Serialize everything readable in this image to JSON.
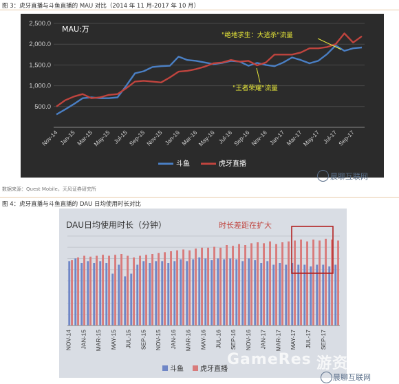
{
  "figure1": {
    "caption": "图 3：虎牙直播与斗鱼直播的 MAU 对比（2014 年 11 月-2017 年 10 月）",
    "source": "数据来源：Quest Mobile，天风证券研究所"
  },
  "figure2": {
    "caption": "图 4：虎牙直播与斗鱼直播的 DAU 日均使用时长对比"
  },
  "watermark": {
    "text1": "晨聊互联网",
    "text2": "晨聊互联网",
    "big": "GameRes",
    "big2": "游资网"
  },
  "chart_data": [
    {
      "type": "line",
      "title": "MAU:万",
      "ylim": [
        0,
        2500
      ],
      "yticks": [
        "500.0",
        "1,000.0",
        "1,500.0",
        "2,000.0",
        "2,500.0"
      ],
      "x_tick_labels": [
        "Nov-14",
        "Jan-15",
        "Mar-15",
        "May-15",
        "Jul-15",
        "Sep-15",
        "Nov-15",
        "Jan-16",
        "Mar-16",
        "May-16",
        "Jul-16",
        "Sep-16",
        "Nov-16",
        "Jan-17",
        "Mar-17",
        "May-17",
        "Jul-17",
        "Sep-17"
      ],
      "annotations": [
        "\"绝地求生：大逃杀\"流量",
        "\"王者荣耀\"流量"
      ],
      "legend": {
        "position": "bottom"
      },
      "series": [
        {
          "name": "斗鱼",
          "color": "#4a7fc4",
          "values": [
            310,
            430,
            560,
            700,
            720,
            700,
            700,
            720,
            1000,
            1300,
            1350,
            1450,
            1470,
            1480,
            1700,
            1620,
            1600,
            1560,
            1520,
            1550,
            1600,
            1580,
            1480,
            1550,
            1500,
            1470,
            1560,
            1680,
            1620,
            1540,
            1600,
            1760,
            1970,
            1840,
            1900,
            1920
          ]
        },
        {
          "name": "虎牙直播",
          "color": "#c0443e",
          "values": [
            500,
            650,
            740,
            800,
            700,
            720,
            780,
            800,
            940,
            1100,
            1120,
            1100,
            1080,
            1200,
            1340,
            1360,
            1400,
            1460,
            1540,
            1560,
            1620,
            1580,
            1600,
            1490,
            1560,
            1750,
            1750,
            1750,
            1800,
            1900,
            1900,
            1930,
            2000,
            2260,
            2040,
            2190
          ]
        }
      ]
    },
    {
      "type": "bar",
      "title": "DAU日均使用时长（分钟）",
      "x_tick_labels": [
        "NOV-14",
        "JAN-15",
        "MAR-15",
        "MAY-15",
        "JUL-15",
        "SEP-15",
        "NOV-15",
        "JAN-16",
        "MAR-16",
        "MAY-16",
        "JUL-16",
        "SEP-16",
        "NOV-16",
        "JAN-17",
        "MAR-17",
        "MAY-17",
        "JUL-17",
        "SEP-17"
      ],
      "annotations": [
        "时长差距在扩大"
      ],
      "legend": {
        "position": "bottom"
      },
      "series": [
        {
          "name": "斗鱼",
          "color": "#6f86c6",
          "values": [
            72,
            75,
            70,
            72,
            70,
            72,
            70,
            58,
            68,
            55,
            58,
            68,
            72,
            70,
            72,
            72,
            70,
            72,
            74,
            72,
            74,
            76,
            75,
            73,
            75,
            74,
            75,
            74,
            72,
            75,
            73,
            70,
            72,
            68,
            70,
            68,
            70,
            68,
            68,
            66,
            68,
            68,
            66,
            68
          ]
        },
        {
          "name": "虎牙直播",
          "color": "#d87b7b",
          "values": [
            73,
            76,
            78,
            77,
            78,
            79,
            78,
            79,
            80,
            78,
            76,
            78,
            79,
            80,
            81,
            82,
            83,
            84,
            85,
            84,
            86,
            87,
            87,
            88,
            87,
            90,
            89,
            91,
            90,
            92,
            93,
            92,
            94,
            91,
            93,
            94,
            95,
            96,
            94,
            96,
            95,
            97,
            96,
            95
          ]
        }
      ]
    }
  ]
}
